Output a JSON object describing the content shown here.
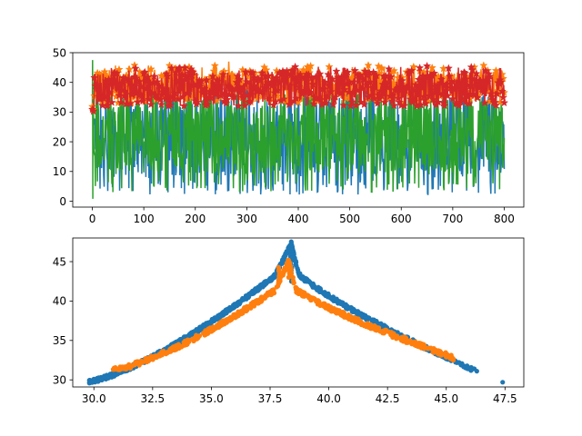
{
  "colors": {
    "blue": "#1f77b4",
    "orange": "#ff7f0e",
    "green": "#2ca02c",
    "red": "#d62728"
  },
  "chart_data": [
    {
      "type": "line",
      "title": "",
      "xlabel": "",
      "ylabel": "",
      "xlim": [
        -38,
        838
      ],
      "ylim": [
        -2,
        50
      ],
      "x_ticks": [
        0,
        100,
        200,
        300,
        400,
        500,
        600,
        700,
        800
      ],
      "y_ticks": [
        0,
        10,
        20,
        30,
        40,
        50
      ],
      "x_tick_labels": [
        "0",
        "100",
        "200",
        "300",
        "400",
        "500",
        "600",
        "700",
        "800"
      ],
      "y_tick_labels": [
        "0",
        "10",
        "20",
        "30",
        "40",
        "50"
      ],
      "grid": false,
      "legend": "none",
      "x_range": [
        0,
        800
      ],
      "series": [
        {
          "color": "blue",
          "style": "line",
          "min": 1.5,
          "max": 38,
          "start": 30,
          "dip_at": [
            0,
            4,
            15,
            265,
            750
          ],
          "description_band": [
            8,
            36
          ]
        },
        {
          "color": "green",
          "style": "line",
          "min": 0.5,
          "max": 47.5,
          "band": [
            9,
            35
          ],
          "spike_x": 0
        },
        {
          "color": "orange",
          "style": "star-marker-line",
          "band": [
            32,
            45
          ],
          "peak": 47
        },
        {
          "color": "red",
          "style": "star-marker-line",
          "band": [
            32,
            44
          ],
          "peak": 45.5
        }
      ]
    },
    {
      "type": "scatter",
      "title": "",
      "xlabel": "",
      "ylabel": "",
      "xlim": [
        29.1,
        48.3
      ],
      "ylim": [
        29.1,
        48.0
      ],
      "x_ticks": [
        30.0,
        32.5,
        35.0,
        37.5,
        40.0,
        42.5,
        45.0,
        47.5
      ],
      "y_ticks": [
        30,
        35,
        40,
        45
      ],
      "x_tick_labels": [
        "30.0",
        "32.5",
        "35.0",
        "37.5",
        "40.0",
        "42.5",
        "45.0",
        "47.5"
      ],
      "y_tick_labels": [
        "30",
        "35",
        "40",
        "45"
      ],
      "grid": false,
      "legend": "none",
      "series": [
        {
          "color": "blue",
          "peak_x": 38.4,
          "peak_y": 47.3,
          "rise_from": [
            29.8,
            29.8
          ],
          "fall_to": [
            46.3,
            31.1
          ],
          "outlier": [
            47.4,
            29.7
          ]
        },
        {
          "color": "orange",
          "peak_x": 38.3,
          "peak_y": 45.2,
          "secondary_peak": [
            37.9,
            44.3
          ],
          "rise_from": [
            30.8,
            30.9
          ],
          "fall_to": [
            45.3,
            32.5
          ]
        }
      ]
    }
  ]
}
